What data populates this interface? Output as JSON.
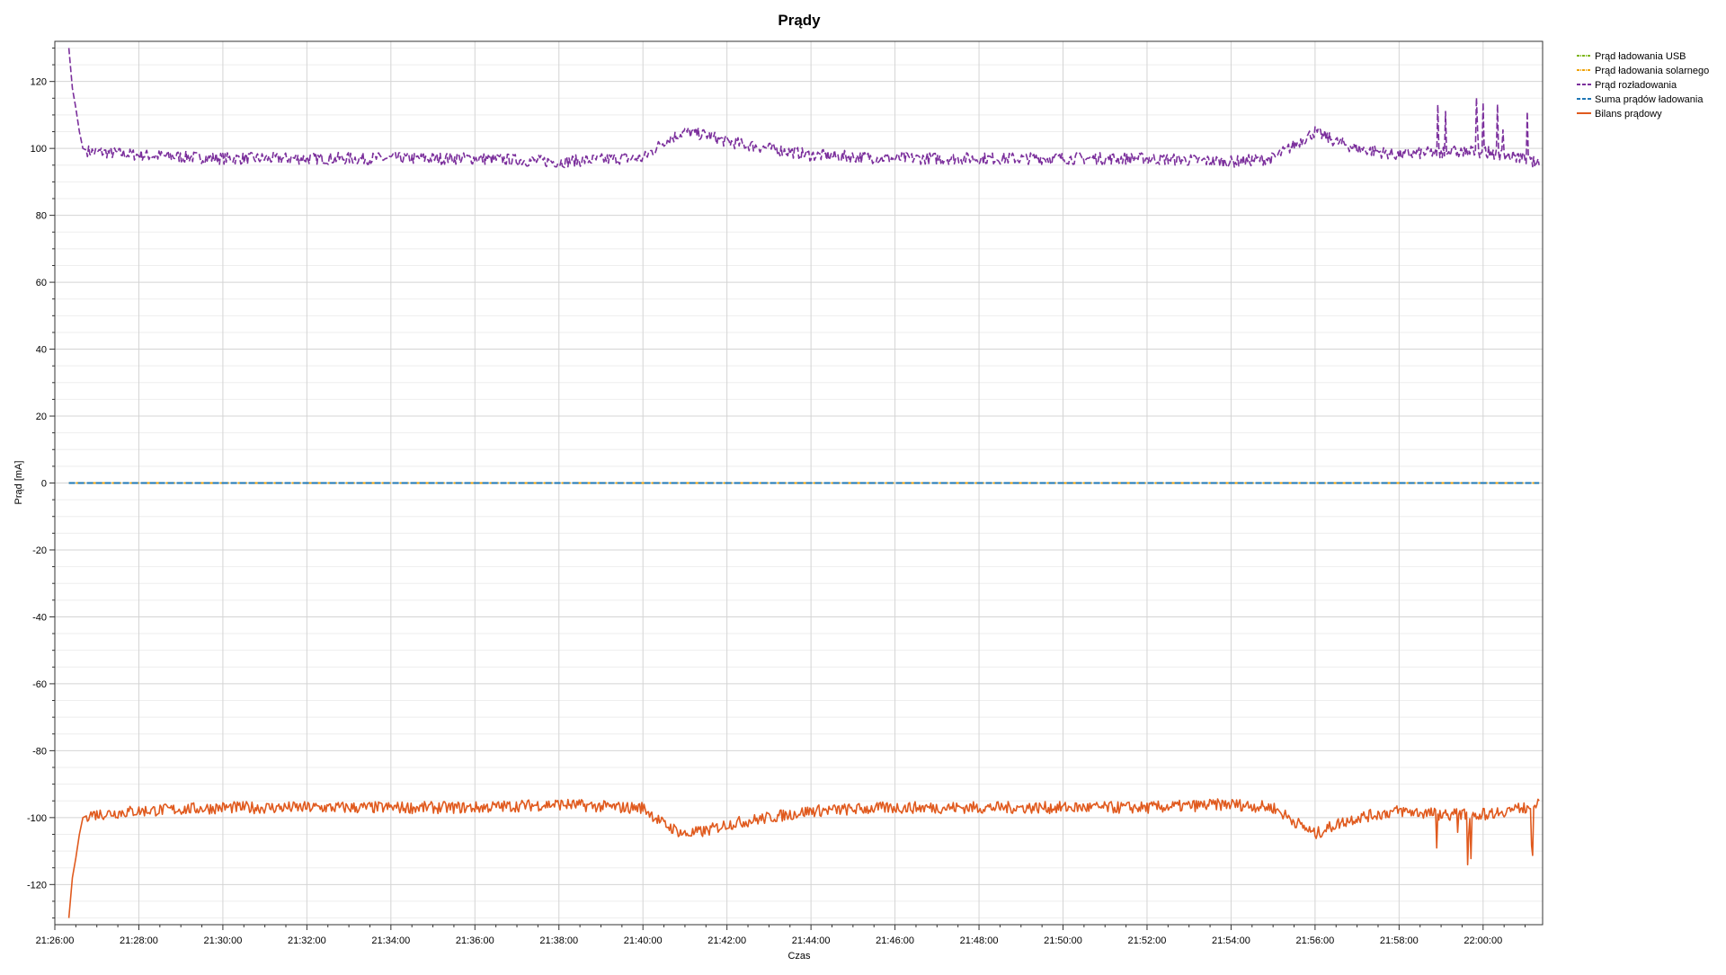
{
  "chart_data": {
    "type": "line",
    "title": "Prądy",
    "xlabel": "Czas",
    "ylabel": "Prąd [mA]",
    "ylim": [
      -132,
      132
    ],
    "y_major_ticks": [
      120,
      100,
      80,
      60,
      40,
      20,
      0,
      -20,
      -40,
      -60,
      -80,
      -100,
      -120
    ],
    "y_tick_labels": [
      "120",
      "100",
      "80",
      "60",
      "40",
      "20",
      "0",
      "-20",
      "-40",
      "-60",
      "-80",
      "-100",
      "-120"
    ],
    "xlim": [
      "21:26:00",
      "21:61:25"
    ],
    "x_ticks": [
      "21:26:00",
      "21:28:00",
      "21:30:00",
      "21:32:00",
      "21:34:00",
      "21:36:00",
      "21:38:00",
      "21:40:00",
      "21:42:00",
      "21:44:00",
      "21:46:00",
      "21:48:00",
      "21:50:00",
      "21:52:00",
      "21:54:00",
      "21:56:00",
      "21:58:00",
      "22:00:00"
    ],
    "grid": true,
    "legend_position": "top-right, outside plot",
    "series": [
      {
        "name": "Prąd ładowania USB",
        "color": "#7cb518",
        "dash": "dash-dot",
        "x": [
          "21:26:20",
          "22:01:20"
        ],
        "y": [
          0,
          0
        ]
      },
      {
        "name": "Prąd ładowania solarnego",
        "color": "#f0a30a",
        "dash": "dash-dot",
        "x": [
          "21:26:20",
          "22:01:20"
        ],
        "y": [
          0,
          0
        ]
      },
      {
        "name": "Prąd rozładowania",
        "color": "#7b2f9c",
        "dash": "dash",
        "x": [
          "21:26:20",
          "21:26:25",
          "21:26:30",
          "21:26:35",
          "21:26:40",
          "21:26:50",
          "21:27:00",
          "21:28:00",
          "21:30:00",
          "21:32:00",
          "21:34:00",
          "21:36:00",
          "21:38:00",
          "21:39:30",
          "21:40:00",
          "21:40:30",
          "21:41:00",
          "21:41:30",
          "21:42:00",
          "21:43:00",
          "21:44:00",
          "21:46:00",
          "21:48:00",
          "21:50:00",
          "21:52:00",
          "21:54:00",
          "21:55:00",
          "21:55:30",
          "21:56:00",
          "21:56:30",
          "21:57:00",
          "21:58:00",
          "21:59:00",
          "22:00:00",
          "22:00:30",
          "22:01:00",
          "22:01:20"
        ],
        "y": [
          130,
          118,
          112,
          105,
          100,
          99,
          99,
          98,
          97,
          97,
          97,
          97,
          96,
          97,
          97,
          102,
          105,
          104,
          102,
          100,
          98,
          97,
          97,
          97,
          97,
          96,
          97,
          101,
          105,
          102,
          100,
          98,
          99,
          99,
          98,
          97,
          95
        ]
      },
      {
        "name": "Suma prądów ładowania",
        "color": "#1f77b4",
        "dash": "dash",
        "x": [
          "21:26:20",
          "22:01:20"
        ],
        "y": [
          0,
          0
        ]
      },
      {
        "name": "Bilans prądowy",
        "color": "#e05a1e",
        "dash": "solid",
        "x": [
          "21:26:20",
          "21:26:25",
          "21:26:30",
          "21:26:35",
          "21:26:40",
          "21:26:50",
          "21:27:00",
          "21:28:00",
          "21:30:00",
          "21:32:00",
          "21:34:00",
          "21:36:00",
          "21:38:00",
          "21:39:30",
          "21:40:00",
          "21:40:30",
          "21:41:00",
          "21:41:30",
          "21:42:00",
          "21:43:00",
          "21:44:00",
          "21:46:00",
          "21:48:00",
          "21:50:00",
          "21:52:00",
          "21:54:00",
          "21:55:00",
          "21:55:30",
          "21:56:00",
          "21:56:30",
          "21:57:00",
          "21:58:00",
          "21:59:00",
          "22:00:00",
          "22:00:30",
          "22:01:00",
          "22:01:20"
        ],
        "y": [
          -130,
          -118,
          -112,
          -105,
          -100,
          -99,
          -99,
          -98,
          -97,
          -97,
          -97,
          -97,
          -96,
          -97,
          -97,
          -102,
          -105,
          -104,
          -102,
          -100,
          -98,
          -97,
          -97,
          -97,
          -97,
          -96,
          -97,
          -101,
          -105,
          -102,
          -100,
          -98,
          -99,
          -99,
          -98,
          -97,
          -95
        ]
      }
    ]
  }
}
